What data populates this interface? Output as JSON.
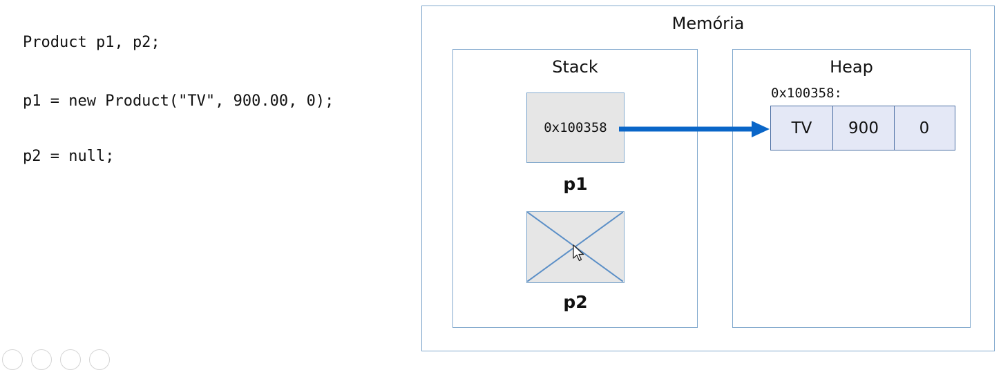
{
  "code": {
    "line1": "Product p1, p2;",
    "line2": "p1 = new Product(\"TV\", 900.00, 0);",
    "line3": "p2 = null;"
  },
  "memory": {
    "title": "Memória",
    "stack": {
      "title": "Stack",
      "p1_value": "0x100358",
      "p1_label": "p1",
      "p2_label": "p2"
    },
    "heap": {
      "title": "Heap",
      "address": "0x100358:",
      "object_fields": [
        "TV",
        "900",
        "0"
      ]
    }
  },
  "colors": {
    "arrow": "#0a66c8",
    "box_border": "#7fa7cc",
    "cell_fill": "#e6e6e6",
    "object_fill": "#e4e8f6",
    "object_border": "#4a6ea3"
  },
  "icons": {
    "null_reference": "crossed-box-icon",
    "pointer": "mouse-cursor-icon"
  }
}
